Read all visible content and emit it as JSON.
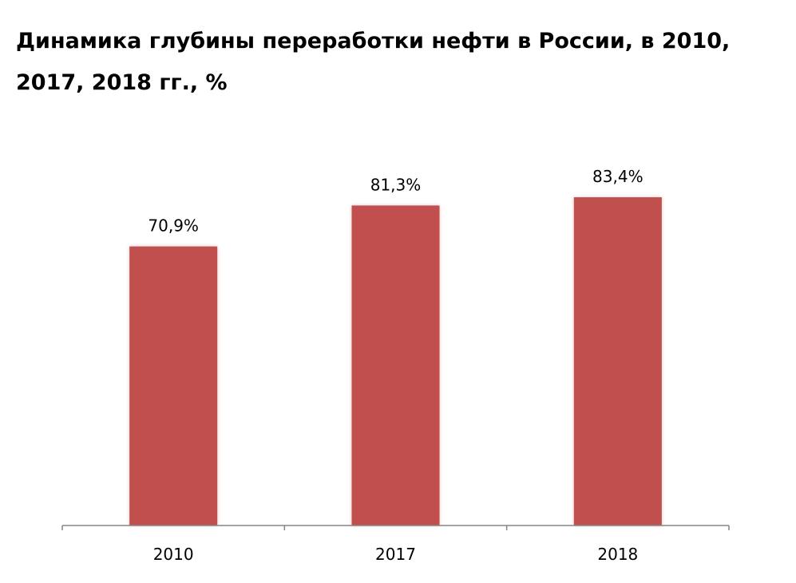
{
  "chart_data": {
    "type": "bar",
    "title": "Динамика глубины переработки нефти в России, в 2010, 2017, 2018 гг., %",
    "categories": [
      "2010",
      "2017",
      "2018"
    ],
    "values": [
      70.9,
      81.3,
      83.4
    ],
    "value_labels": [
      "70,9%",
      "81,3%",
      "83,4%"
    ],
    "xlabel": "",
    "ylabel": "",
    "ylim": [
      0,
      83.4
    ],
    "bar_color": "#c0504d",
    "axis_color": "#868686",
    "grid": false,
    "legend": "none"
  }
}
